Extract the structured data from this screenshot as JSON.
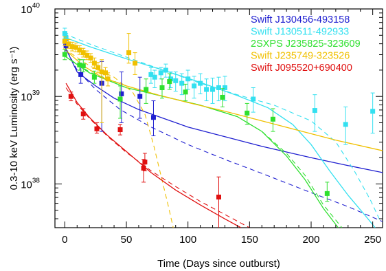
{
  "chart_data": {
    "type": "scatter",
    "xlabel": "Time (Days since outburst)",
    "ylabel": "0.3-10 keV Luminosity (erg s⁻¹)",
    "xlim": [
      -8,
      258
    ],
    "ylim_log10": [
      37.5,
      40
    ],
    "y_log_scale": true,
    "grid": false,
    "legend_position": "top-right",
    "x_ticks": [
      0,
      50,
      100,
      150,
      200,
      250
    ],
    "y_ticks": [
      {
        "exp": 38,
        "base": "10",
        "sup": "38"
      },
      {
        "exp": 39,
        "base": "10",
        "sup": "39"
      },
      {
        "exp": 40,
        "base": "10",
        "sup": "40"
      }
    ],
    "series": [
      {
        "name": "Swift J130456-493158",
        "color": "#1f1fd0",
        "points": [
          {
            "x": 1,
            "y": 39.58,
            "lo": 39.52,
            "hi": 39.64
          },
          {
            "x": 13,
            "y": 39.25,
            "lo": 39.15,
            "hi": 39.35
          },
          {
            "x": 30,
            "y": 39.15,
            "lo": 38.6,
            "hi": 39.4
          },
          {
            "x": 46,
            "y": 39.03,
            "lo": 38.7,
            "hi": 39.28
          },
          {
            "x": 61,
            "y": 39.0,
            "lo": 38.75,
            "hi": 39.22
          },
          {
            "x": 72,
            "y": 38.76,
            "lo": 38.55,
            "hi": 38.95
          }
        ],
        "fit_solid": [
          [
            -1,
            39.6
          ],
          [
            10,
            39.28
          ],
          [
            25,
            39.12
          ],
          [
            40,
            38.98
          ],
          [
            60,
            38.85
          ],
          [
            80,
            38.75
          ],
          [
            100,
            38.65
          ],
          [
            130,
            38.54
          ],
          [
            160,
            38.43
          ],
          [
            200,
            38.3
          ],
          [
            230,
            38.21
          ],
          [
            258,
            38.13
          ]
        ],
        "fit_dashed": [
          [
            -1,
            39.6
          ],
          [
            10,
            39.3
          ],
          [
            25,
            39.08
          ],
          [
            45,
            38.85
          ],
          [
            70,
            38.65
          ],
          [
            100,
            38.45
          ],
          [
            130,
            38.28
          ],
          [
            160,
            38.12
          ],
          [
            200,
            37.9
          ],
          [
            230,
            37.74
          ],
          [
            258,
            37.57
          ]
        ]
      },
      {
        "name": "Swift J130511-492933",
        "color": "#33e0f0",
        "points": [
          {
            "x": 0,
            "y": 39.72,
            "lo": 39.66,
            "hi": 39.78
          },
          {
            "x": 1,
            "y": 39.67,
            "lo": 39.62,
            "hi": 39.72
          },
          {
            "x": 70,
            "y": 39.25,
            "lo": 39.15,
            "hi": 39.33
          },
          {
            "x": 73,
            "y": 39.22,
            "lo": 39.1,
            "hi": 39.3
          },
          {
            "x": 78,
            "y": 39.27,
            "lo": 39.2,
            "hi": 39.33
          },
          {
            "x": 82,
            "y": 39.3,
            "lo": 39.22,
            "hi": 39.37
          },
          {
            "x": 86,
            "y": 39.2,
            "lo": 39.1,
            "hi": 39.28
          },
          {
            "x": 90,
            "y": 39.18,
            "lo": 39.06,
            "hi": 39.28
          },
          {
            "x": 95,
            "y": 39.15,
            "lo": 39.02,
            "hi": 39.26
          },
          {
            "x": 100,
            "y": 39.2,
            "lo": 39.08,
            "hi": 39.3
          },
          {
            "x": 105,
            "y": 39.12,
            "lo": 38.98,
            "hi": 39.23
          },
          {
            "x": 110,
            "y": 39.15,
            "lo": 39.03,
            "hi": 39.26
          },
          {
            "x": 115,
            "y": 39.08,
            "lo": 38.95,
            "hi": 39.2
          },
          {
            "x": 120,
            "y": 39.08,
            "lo": 38.92,
            "hi": 39.21
          },
          {
            "x": 125,
            "y": 39.1,
            "lo": 38.95,
            "hi": 39.22
          },
          {
            "x": 130,
            "y": 39.1,
            "lo": 38.95,
            "hi": 39.23
          },
          {
            "x": 153,
            "y": 38.97,
            "lo": 38.82,
            "hi": 39.1
          },
          {
            "x": 203,
            "y": 38.84,
            "lo": 38.6,
            "hi": 39.02
          },
          {
            "x": 228,
            "y": 38.68,
            "lo": 38.45,
            "hi": 38.88
          },
          {
            "x": 250,
            "y": 38.83,
            "lo": 38.58,
            "hi": 39.04
          }
        ],
        "fit_solid": [
          [
            -1,
            39.68
          ],
          [
            20,
            39.57
          ],
          [
            50,
            39.43
          ],
          [
            80,
            39.3
          ],
          [
            110,
            39.16
          ],
          [
            140,
            39.01
          ],
          [
            165,
            38.87
          ],
          [
            185,
            38.68
          ],
          [
            200,
            38.45
          ],
          [
            215,
            38.15
          ],
          [
            230,
            37.87
          ],
          [
            245,
            37.62
          ],
          [
            252,
            37.5
          ]
        ],
        "fit_dashed": [
          [
            -1,
            39.72
          ],
          [
            20,
            39.6
          ],
          [
            50,
            39.45
          ],
          [
            80,
            39.3
          ],
          [
            110,
            39.15
          ],
          [
            140,
            39.02
          ],
          [
            170,
            38.9
          ],
          [
            200,
            38.72
          ],
          [
            220,
            38.48
          ],
          [
            235,
            38.15
          ],
          [
            248,
            37.82
          ],
          [
            256,
            37.58
          ]
        ]
      },
      {
        "name": "2SXPS J235825-323609",
        "color": "#2fe02f",
        "points": [
          {
            "x": 0,
            "y": 39.48,
            "lo": 39.42,
            "hi": 39.54
          },
          {
            "x": 12,
            "y": 39.36,
            "lo": 39.3,
            "hi": 39.42
          },
          {
            "x": 15,
            "y": 39.35,
            "lo": 39.28,
            "hi": 39.42
          },
          {
            "x": 24,
            "y": 39.22,
            "lo": 39.15,
            "hi": 39.29
          },
          {
            "x": 45,
            "y": 38.97,
            "lo": 38.75,
            "hi": 39.12
          },
          {
            "x": 66,
            "y": 39.08,
            "lo": 38.92,
            "hi": 39.2
          },
          {
            "x": 79,
            "y": 39.1,
            "lo": 38.98,
            "hi": 39.2
          },
          {
            "x": 85,
            "y": 39.17,
            "lo": 39.08,
            "hi": 39.26
          },
          {
            "x": 98,
            "y": 39.05,
            "lo": 38.95,
            "hi": 39.14
          },
          {
            "x": 128,
            "y": 38.99,
            "lo": 38.88,
            "hi": 39.09
          },
          {
            "x": 148,
            "y": 38.81,
            "lo": 38.68,
            "hi": 38.92
          },
          {
            "x": 169,
            "y": 38.74,
            "lo": 38.6,
            "hi": 38.86
          },
          {
            "x": 213,
            "y": 37.89,
            "lo": 37.8,
            "hi": 38.02
          }
        ],
        "fit_solid": [
          [
            -1,
            39.47
          ],
          [
            20,
            39.27
          ],
          [
            50,
            39.1
          ],
          [
            80,
            39.0
          ],
          [
            110,
            38.9
          ],
          [
            140,
            38.77
          ],
          [
            160,
            38.6
          ],
          [
            180,
            38.32
          ],
          [
            195,
            38.05
          ],
          [
            210,
            37.72
          ],
          [
            222,
            37.5
          ]
        ],
        "fit_dashed": [
          [
            -1,
            39.47
          ],
          [
            20,
            39.28
          ],
          [
            50,
            39.12
          ],
          [
            80,
            39.0
          ],
          [
            110,
            38.9
          ],
          [
            140,
            38.77
          ],
          [
            160,
            38.6
          ],
          [
            180,
            38.35
          ],
          [
            195,
            38.1
          ],
          [
            210,
            37.76
          ],
          [
            225,
            37.5
          ]
        ]
      },
      {
        "name": "Swift J235749-323526",
        "color": "#f0c000",
        "points": [
          {
            "x": 0,
            "y": 39.63,
            "lo": 39.58,
            "hi": 39.68
          },
          {
            "x": 3,
            "y": 39.6,
            "lo": 39.55,
            "hi": 39.65
          },
          {
            "x": 6,
            "y": 39.57,
            "lo": 39.52,
            "hi": 39.62
          },
          {
            "x": 9,
            "y": 39.56,
            "lo": 39.51,
            "hi": 39.61
          },
          {
            "x": 12,
            "y": 39.53,
            "lo": 39.48,
            "hi": 39.58
          },
          {
            "x": 15,
            "y": 39.5,
            "lo": 39.45,
            "hi": 39.55
          },
          {
            "x": 18,
            "y": 39.47,
            "lo": 39.42,
            "hi": 39.52
          },
          {
            "x": 21,
            "y": 39.44,
            "lo": 39.39,
            "hi": 39.49
          },
          {
            "x": 24,
            "y": 39.38,
            "lo": 39.32,
            "hi": 39.44
          },
          {
            "x": 27,
            "y": 39.33,
            "lo": 39.27,
            "hi": 39.39
          },
          {
            "x": 30,
            "y": 39.28,
            "lo": 38.7,
            "hi": 39.42
          },
          {
            "x": 33,
            "y": 39.27,
            "lo": 39.2,
            "hi": 39.33
          },
          {
            "x": 35,
            "y": 39.2,
            "lo": 39.12,
            "hi": 39.27
          },
          {
            "x": 52,
            "y": 39.5,
            "lo": 39.38,
            "hi": 39.72
          },
          {
            "x": 57,
            "y": 39.38,
            "lo": 39.25,
            "hi": 39.5
          }
        ],
        "fit_solid": [
          [
            -1,
            39.55
          ],
          [
            15,
            39.35
          ],
          [
            30,
            39.22
          ],
          [
            50,
            39.12
          ],
          [
            75,
            39.02
          ],
          [
            100,
            38.93
          ],
          [
            130,
            38.83
          ],
          [
            160,
            38.72
          ],
          [
            190,
            38.61
          ],
          [
            220,
            38.5
          ],
          [
            258,
            38.38
          ]
        ],
        "fit_dashed": [
          [
            -1,
            39.55
          ],
          [
            20,
            39.35
          ],
          [
            40,
            39.22
          ],
          [
            55,
            39.05
          ],
          [
            65,
            38.8
          ],
          [
            72,
            38.45
          ],
          [
            78,
            38.1
          ],
          [
            84,
            37.75
          ],
          [
            88,
            37.5
          ]
        ]
      },
      {
        "name": "Swift J095520+690400",
        "color": "#e01010",
        "points": [
          {
            "x": 5,
            "y": 39.0,
            "lo": 38.95,
            "hi": 39.05
          },
          {
            "x": 15,
            "y": 38.8,
            "lo": 38.74,
            "hi": 38.86
          },
          {
            "x": 26,
            "y": 38.63,
            "lo": 38.58,
            "hi": 38.7
          },
          {
            "x": 45,
            "y": 38.62,
            "lo": 38.56,
            "hi": 38.68
          },
          {
            "x": 64,
            "y": 38.18,
            "lo": 38.02,
            "hi": 38.28
          },
          {
            "x": 65,
            "y": 38.25,
            "lo": 38.15,
            "hi": 38.35
          },
          {
            "x": 125,
            "y": 37.85,
            "lo": 37.48,
            "hi": 38.08
          }
        ],
        "fit_solid": [
          [
            1,
            39.15
          ],
          [
            10,
            38.93
          ],
          [
            20,
            38.76
          ],
          [
            35,
            38.55
          ],
          [
            50,
            38.37
          ],
          [
            70,
            38.13
          ],
          [
            90,
            37.93
          ],
          [
            110,
            37.76
          ],
          [
            130,
            37.6
          ],
          [
            143,
            37.5
          ]
        ],
        "fit_dashed": [
          [
            1,
            39.1
          ],
          [
            10,
            38.91
          ],
          [
            20,
            38.75
          ],
          [
            35,
            38.54
          ],
          [
            50,
            38.36
          ],
          [
            70,
            38.15
          ],
          [
            90,
            37.97
          ],
          [
            110,
            37.8
          ],
          [
            130,
            37.65
          ],
          [
            150,
            37.5
          ]
        ]
      }
    ]
  }
}
